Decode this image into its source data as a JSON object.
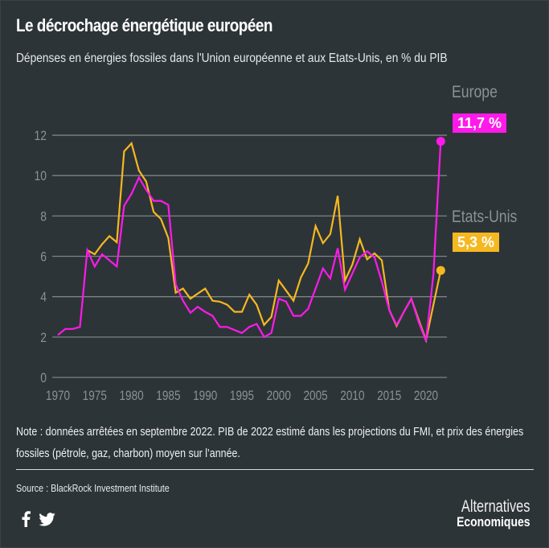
{
  "header": {
    "title": "Le décrochage énergétique européen",
    "subtitle": "Dépenses en énergies fossiles dans l'Union européenne et aux Etats-Unis, en % du PIB"
  },
  "legend": {
    "europe": {
      "name": "Europe",
      "badge": "11,7 %"
    },
    "us": {
      "name": "Etats-Unis",
      "badge": "5,3 %"
    }
  },
  "colors": {
    "background": "#2d3438",
    "europe": "#ff1aea",
    "us": "#f5b821",
    "grid": "#7c8286",
    "axis_text": "#8b9094"
  },
  "footer": {
    "note": "Note : données arrêtées en septembre 2022. PIB de 2022 estimé dans les projections du FMI, et prix des énergies fossiles (pétrole, gaz, charbon) moyen sur l’année.",
    "source": "Source : BlackRock Investment Institute",
    "social": [
      "facebook-icon",
      "twitter-icon"
    ],
    "brand_line1": "Alternatives",
    "brand_line2": "Economiques"
  },
  "chart_data": {
    "type": "line",
    "title": "Le décrochage énergétique européen",
    "subtitle": "Dépenses en énergies fossiles dans l'Union européenne et aux Etats-Unis, en % du PIB",
    "xlabel": "",
    "ylabel": "% du PIB",
    "xlim": [
      1970,
      2022
    ],
    "ylim": [
      0,
      12
    ],
    "yticks": [
      0,
      2,
      4,
      6,
      8,
      10,
      12
    ],
    "ytick_labels": [
      "0",
      "2",
      "4",
      "6",
      "8",
      "10",
      "12"
    ],
    "xticks": [
      1970,
      1975,
      1980,
      1985,
      1990,
      1995,
      2000,
      2005,
      2010,
      2015,
      2020
    ],
    "xtick_labels": [
      "1970",
      "1975",
      "1980",
      "1985",
      "1990",
      "1995",
      "2000",
      "2005",
      "2010",
      "2015",
      "2020"
    ],
    "grid": "horizontal",
    "legend_placement": "right",
    "series": [
      {
        "name": "Europe",
        "color": "#ff1aea",
        "end_label": "11,7 %",
        "x": [
          1970,
          1971,
          1972,
          1973,
          1974,
          1975,
          1976,
          1977,
          1978,
          1979,
          1980,
          1981,
          1982,
          1983,
          1984,
          1985,
          1986,
          1987,
          1988,
          1989,
          1990,
          1991,
          1992,
          1993,
          1994,
          1995,
          1996,
          1997,
          1998,
          1999,
          2000,
          2001,
          2002,
          2003,
          2004,
          2005,
          2006,
          2007,
          2008,
          2009,
          2010,
          2011,
          2012,
          2013,
          2014,
          2015,
          2016,
          2017,
          2018,
          2019,
          2020,
          2021,
          2022
        ],
        "values": [
          2.1,
          2.4,
          2.4,
          2.5,
          6.3,
          5.5,
          6.1,
          5.8,
          5.5,
          8.5,
          9.1,
          9.9,
          9.3,
          8.75,
          8.75,
          8.55,
          4.6,
          3.8,
          3.2,
          3.5,
          3.25,
          3.05,
          2.5,
          2.5,
          2.35,
          2.2,
          2.5,
          2.65,
          2.0,
          2.2,
          3.9,
          3.75,
          3.05,
          3.05,
          3.4,
          4.4,
          5.4,
          4.9,
          6.4,
          4.35,
          5.15,
          5.95,
          6.25,
          5.95,
          4.75,
          3.35,
          2.6,
          3.25,
          3.9,
          2.75,
          1.8,
          5.1,
          11.7
        ]
      },
      {
        "name": "Etats-Unis",
        "color": "#f5b821",
        "end_label": "5,3 %",
        "x": [
          1974,
          1975,
          1976,
          1977,
          1978,
          1979,
          1980,
          1981,
          1982,
          1983,
          1984,
          1985,
          1986,
          1987,
          1988,
          1989,
          1990,
          1991,
          1992,
          1993,
          1994,
          1995,
          1996,
          1997,
          1998,
          1999,
          2000,
          2001,
          2002,
          2003,
          2004,
          2005,
          2006,
          2007,
          2008,
          2009,
          2010,
          2011,
          2012,
          2013,
          2014,
          2015,
          2016,
          2017,
          2018,
          2019,
          2020,
          2021,
          2022
        ],
        "values": [
          6.3,
          6.1,
          6.6,
          7.0,
          6.7,
          11.2,
          11.6,
          10.25,
          9.7,
          8.2,
          7.85,
          6.9,
          4.2,
          4.4,
          3.9,
          4.15,
          4.4,
          3.8,
          3.75,
          3.6,
          3.25,
          3.25,
          4.1,
          3.6,
          2.6,
          3.0,
          4.8,
          4.3,
          3.8,
          4.95,
          5.65,
          7.5,
          6.65,
          7.1,
          9.0,
          4.8,
          5.6,
          6.85,
          5.85,
          6.15,
          5.8,
          3.35,
          2.55,
          3.25,
          3.9,
          2.85,
          1.85,
          3.6,
          5.3
        ]
      }
    ]
  }
}
